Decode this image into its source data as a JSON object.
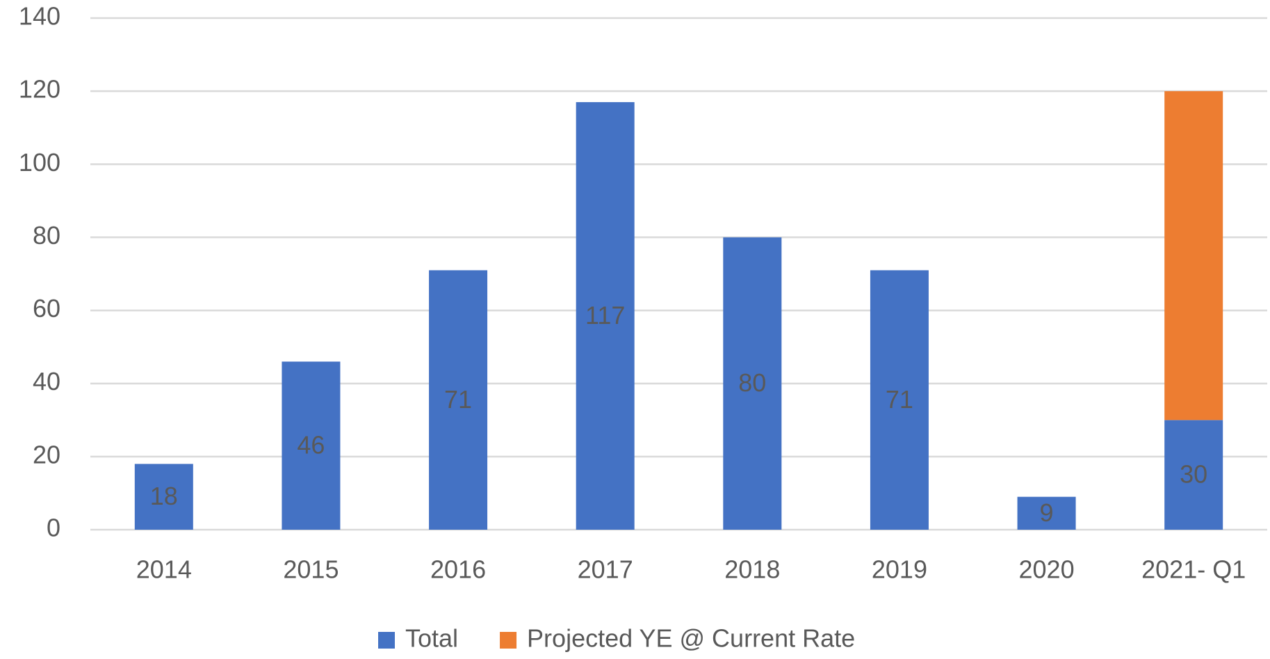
{
  "chart_data": {
    "type": "stacked_bar",
    "categories": [
      "2014",
      "2015",
      "2016",
      "2017",
      "2018",
      "2019",
      "2020",
      "2021- Q1"
    ],
    "series": [
      {
        "name": "Total",
        "color": "#4472c4",
        "values": [
          18,
          46,
          71,
          117,
          80,
          71,
          9,
          30
        ],
        "data_labels": true
      },
      {
        "name": "Projected YE @ Current Rate",
        "color": "#ed7d31",
        "values": [
          null,
          null,
          null,
          null,
          null,
          null,
          null,
          90
        ],
        "data_labels": false
      }
    ],
    "ylim": [
      0,
      140
    ],
    "yticks": [
      0,
      20,
      40,
      60,
      80,
      100,
      120,
      140
    ],
    "grid": true,
    "legend": "bottom"
  }
}
